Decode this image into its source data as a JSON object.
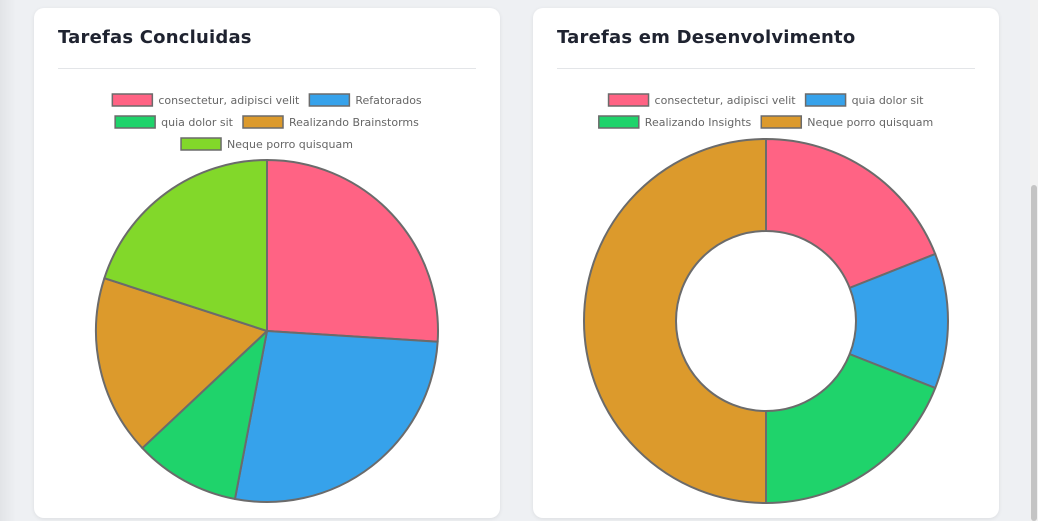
{
  "chart_data": [
    {
      "type": "pie",
      "title": "Tarefas Concluidas",
      "labels": [
        "consectetur, adipisci velit",
        "Refatorados",
        "quia dolor sit",
        "Realizando Brainstorms",
        "Neque porro quisquam"
      ],
      "values": [
        26,
        27,
        10,
        17,
        20
      ],
      "colors": [
        "#ff6384",
        "#36a2eb",
        "#1fd36b",
        "#dc9a2c",
        "#82d82a"
      ],
      "legend": "top"
    },
    {
      "type": "doughnut",
      "title": "Tarefas em Desenvolvimento",
      "labels": [
        "consectetur, adipisci velit",
        "quia dolor sit",
        "Realizando Insights",
        "Neque porro quisquam"
      ],
      "values": [
        19,
        12,
        19,
        50
      ],
      "colors": [
        "#ff6384",
        "#36a2eb",
        "#1fd36b",
        "#dc9a2c"
      ],
      "legend": "top"
    }
  ]
}
